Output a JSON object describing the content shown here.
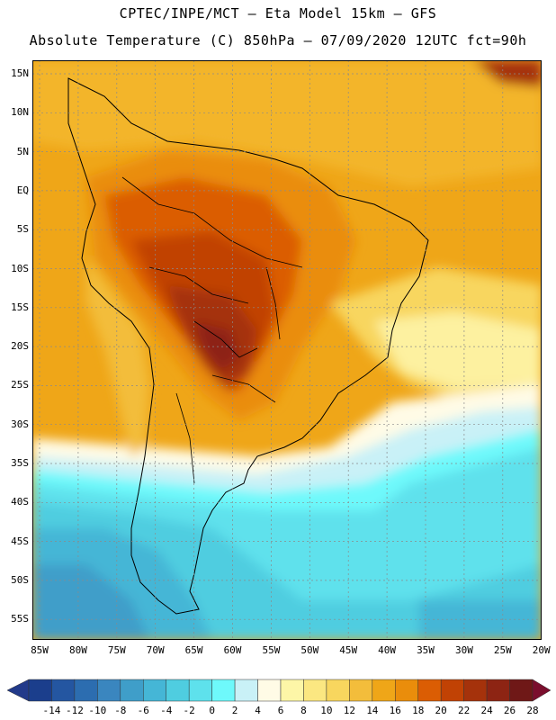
{
  "header": {
    "line1": "CPTEC/INPE/MCT –  Eta Model 15km – GFS",
    "line2": "Absolute Temperature (C) 850hPa – 07/09/2020 12UTC fct=90h"
  },
  "map": {
    "lat_labels": [
      "15N",
      "10N",
      "5N",
      "EQ",
      "5S",
      "10S",
      "15S",
      "20S",
      "25S",
      "30S",
      "35S",
      "40S",
      "45S",
      "50S",
      "55S"
    ],
    "lon_labels": [
      "85W",
      "80W",
      "75W",
      "70W",
      "65W",
      "60W",
      "55W",
      "50W",
      "45W",
      "40W",
      "35W",
      "30W",
      "25W",
      "20W"
    ]
  },
  "colorbar": {
    "labels": [
      "-14",
      "-12",
      "-10",
      "-8",
      "-6",
      "-4",
      "-2",
      "0",
      "2",
      "4",
      "6",
      "8",
      "10",
      "12",
      "14",
      "16",
      "18",
      "20",
      "22",
      "24",
      "26",
      "28"
    ],
    "colors": [
      "#1b3e8c",
      "#2456a1",
      "#2c6db0",
      "#3a86bf",
      "#3f9ec9",
      "#45b6d6",
      "#4fcde0",
      "#5ee1ec",
      "#6ef9fb",
      "#c9f1f7",
      "#fffbe6",
      "#fdf6a7",
      "#fbe781",
      "#f8d65e",
      "#f3bd3b",
      "#efa618",
      "#ea8d0b",
      "#db5d03",
      "#c14204",
      "#a5320b",
      "#8d2413",
      "#6f1817"
    ],
    "under_color": "#223a8a",
    "over_color": "#7a0e2d"
  }
}
